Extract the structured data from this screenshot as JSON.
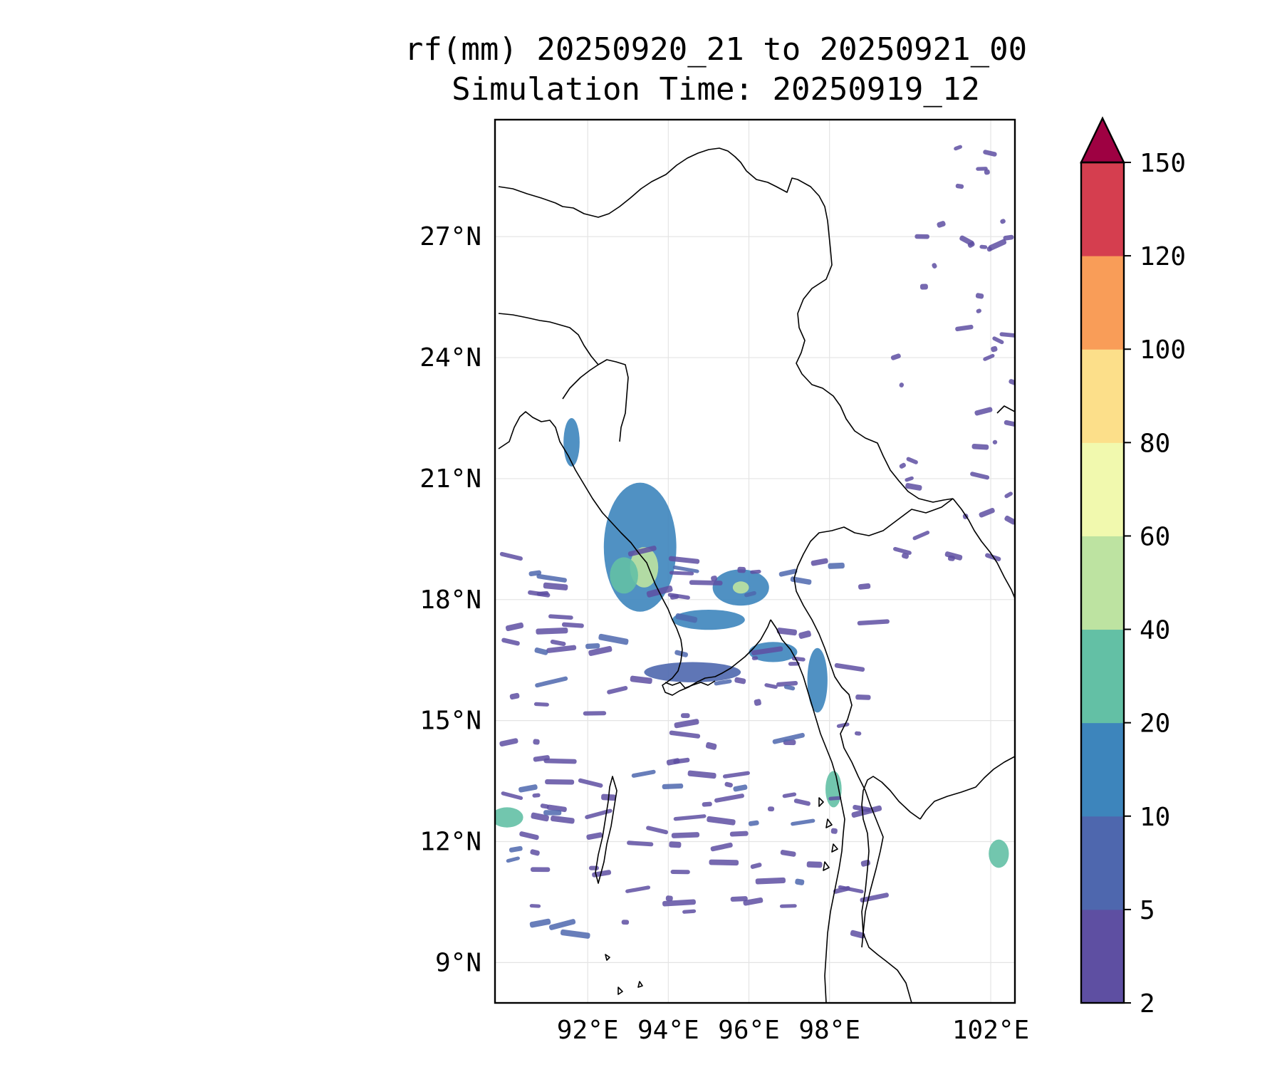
{
  "title": {
    "line1": "rf(mm) 20250920_21 to 20250921_00",
    "line2": "Simulation Time: 20250919_12"
  },
  "map": {
    "lon_range": [
      89.7,
      102.6
    ],
    "lat_range": [
      8.0,
      29.9
    ],
    "lon_ticks": [
      {
        "value": 92,
        "label": "92°E"
      },
      {
        "value": 94,
        "label": "94°E"
      },
      {
        "value": 96,
        "label": "96°E"
      },
      {
        "value": 98,
        "label": "98°E"
      },
      {
        "value": 102,
        "label": "102°E"
      }
    ],
    "lat_ticks": [
      {
        "value": 27,
        "label": "27°N"
      },
      {
        "value": 24,
        "label": "24°N"
      },
      {
        "value": 21,
        "label": "21°N"
      },
      {
        "value": 18,
        "label": "18°N"
      },
      {
        "value": 15,
        "label": "15°N"
      },
      {
        "value": 12,
        "label": "12°N"
      },
      {
        "value": 9,
        "label": "9°N"
      }
    ],
    "gridlines": true,
    "coastline_color": "#000000"
  },
  "colorbar": {
    "levels": [
      {
        "label": "2"
      },
      {
        "label": "5"
      },
      {
        "label": "10"
      },
      {
        "label": "20"
      },
      {
        "label": "40"
      },
      {
        "label": "60"
      },
      {
        "label": "80"
      },
      {
        "label": "100"
      },
      {
        "label": "120"
      },
      {
        "label": "150"
      }
    ],
    "colors": [
      "#5e4fa2",
      "#4e67ae",
      "#3d85bc",
      "#63c0a5",
      "#bde3a1",
      "#f1f9ae",
      "#fcdf8a",
      "#f99d58",
      "#d53e4f"
    ],
    "extend_color": "#9e0142",
    "extend": "max"
  },
  "rain_cells": [
    {
      "lon": 93.3,
      "lat": 19.3,
      "rx": 0.9,
      "ry": 1.6,
      "level": 2
    },
    {
      "lon": 93.4,
      "lat": 18.8,
      "rx": 0.35,
      "ry": 0.5,
      "level": 4
    },
    {
      "lon": 92.9,
      "lat": 18.6,
      "rx": 0.35,
      "ry": 0.45,
      "level": 3
    },
    {
      "lon": 95.8,
      "lat": 18.3,
      "rx": 0.7,
      "ry": 0.45,
      "level": 2
    },
    {
      "lon": 95.8,
      "lat": 18.3,
      "rx": 0.2,
      "ry": 0.15,
      "level": 4
    },
    {
      "lon": 91.6,
      "lat": 21.9,
      "rx": 0.2,
      "ry": 0.6,
      "level": 2
    },
    {
      "lon": 95.0,
      "lat": 17.5,
      "rx": 0.9,
      "ry": 0.25,
      "level": 2
    },
    {
      "lon": 97.7,
      "lat": 16.0,
      "rx": 0.25,
      "ry": 0.8,
      "level": 2
    },
    {
      "lon": 98.1,
      "lat": 13.3,
      "rx": 0.2,
      "ry": 0.45,
      "level": 3
    },
    {
      "lon": 90.0,
      "lat": 12.6,
      "rx": 0.4,
      "ry": 0.25,
      "level": 3
    },
    {
      "lon": 102.2,
      "lat": 11.7,
      "rx": 0.25,
      "ry": 0.35,
      "level": 3
    },
    {
      "lon": 96.6,
      "lat": 16.7,
      "rx": 0.6,
      "ry": 0.25,
      "level": 2
    },
    {
      "lon": 94.6,
      "lat": 16.2,
      "rx": 1.2,
      "ry": 0.25,
      "level": 1
    }
  ]
}
